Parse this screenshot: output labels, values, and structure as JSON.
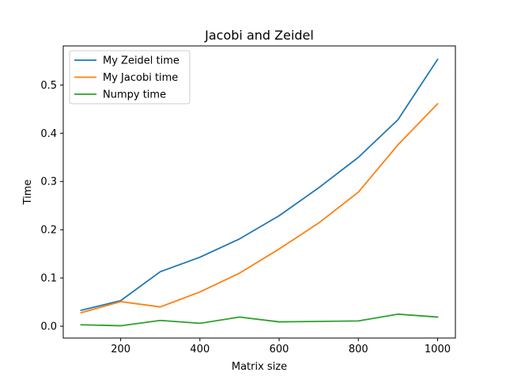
{
  "chart_data": {
    "type": "line",
    "title": "Jacobi and Zeidel",
    "xlabel": "Matrix size",
    "ylabel": "Time",
    "x": [
      100,
      200,
      300,
      400,
      500,
      600,
      700,
      800,
      900,
      1000
    ],
    "xlim": [
      55,
      1045
    ],
    "ylim": [
      -0.0245,
      0.581
    ],
    "xticks": [
      200,
      400,
      600,
      800,
      1000
    ],
    "yticks": [
      0.0,
      0.1,
      0.2,
      0.3,
      0.4,
      0.5
    ],
    "ytick_labels": [
      "0.0",
      "0.1",
      "0.2",
      "0.3",
      "0.4",
      "0.5"
    ],
    "xtick_labels": [
      "200",
      "400",
      "600",
      "800",
      "1000"
    ],
    "grid": false,
    "legend_position": "top-left",
    "series": [
      {
        "name": "My Zeidel time",
        "color": "#1f77b4",
        "values": [
          0.033,
          0.053,
          0.113,
          0.143,
          0.181,
          0.229,
          0.287,
          0.35,
          0.428,
          0.553
        ]
      },
      {
        "name": "My Jacobi time",
        "color": "#ff7f0e",
        "values": [
          0.028,
          0.051,
          0.04,
          0.071,
          0.11,
          0.16,
          0.214,
          0.278,
          0.376,
          0.461
        ]
      },
      {
        "name": "Numpy time",
        "color": "#2ca02c",
        "values": [
          0.003,
          0.001,
          0.012,
          0.006,
          0.019,
          0.009,
          0.01,
          0.011,
          0.025,
          0.019
        ]
      }
    ]
  }
}
